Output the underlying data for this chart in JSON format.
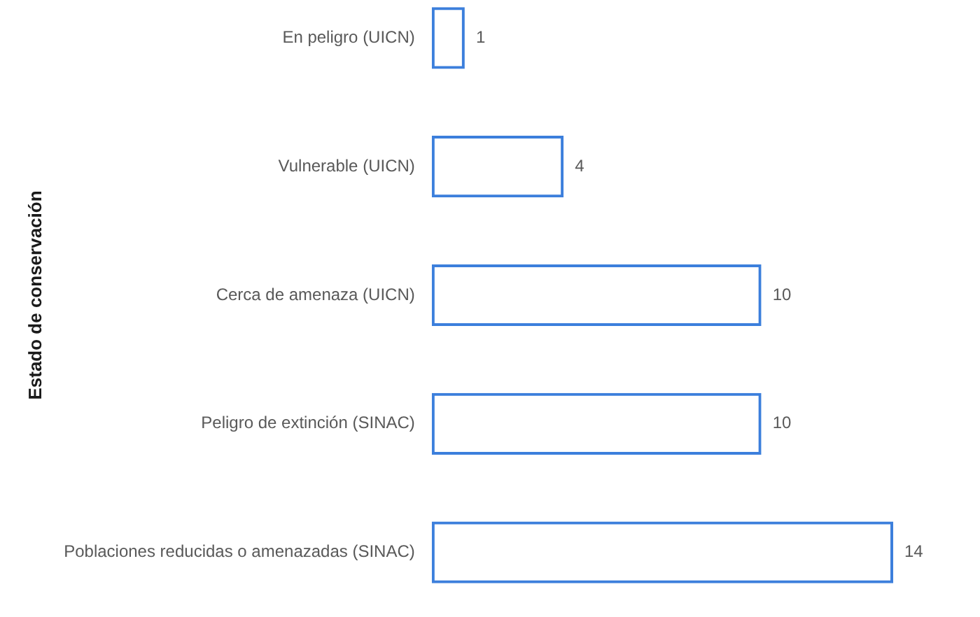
{
  "chart_data": {
    "type": "bar",
    "orientation": "horizontal",
    "ylabel": "Estado de conservación",
    "categories": [
      "En peligro (UICN)",
      "Vulnerable (UICN)",
      "Cerca de amenaza (UICN)",
      "Peligro de extinción (SINAC)",
      "Poblaciones reducidas o amenazadas (SINAC)"
    ],
    "values": [
      1,
      4,
      10,
      10,
      14
    ],
    "color": "#3c7fdc",
    "data_labels": true,
    "legend": false,
    "tick_labels": "y"
  }
}
